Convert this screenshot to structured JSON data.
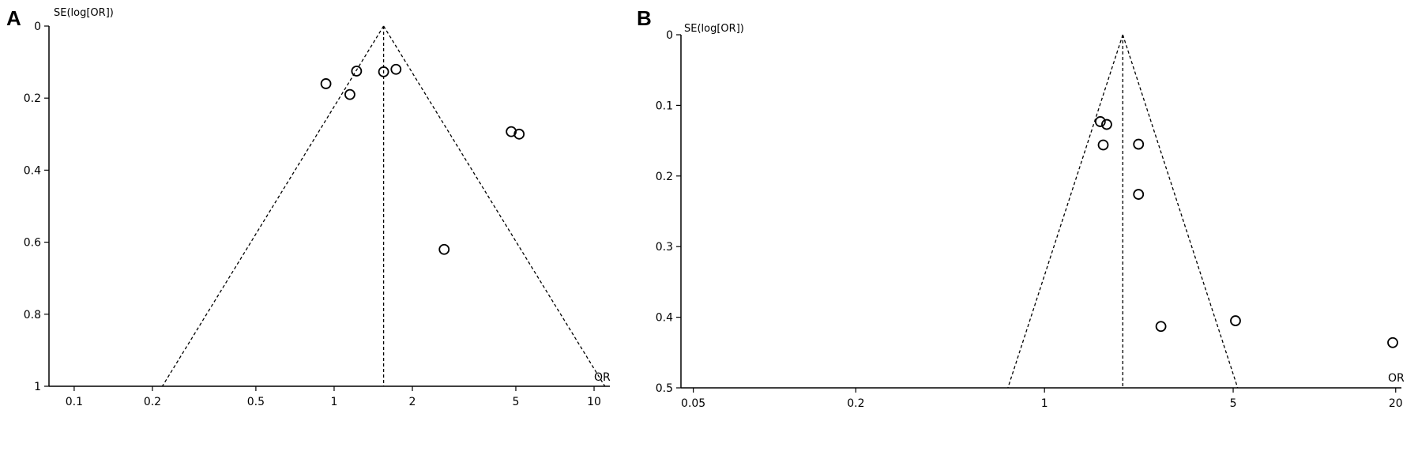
{
  "chart_data": [
    {
      "panel_label": "A",
      "type": "scatter",
      "subtype": "funnel-plot",
      "ylabel": "SE(log[OR])",
      "xlabel": "OR",
      "x_scale": "log",
      "x_ticks": [
        0.1,
        0.2,
        0.5,
        1,
        2,
        5,
        10
      ],
      "x_tick_labels": [
        "0.1",
        "0.2",
        "0.5",
        "1",
        "2",
        "5",
        "10"
      ],
      "xlim": [
        0.08,
        11.5
      ],
      "y_reversed": true,
      "y_ticks": [
        0,
        0.2,
        0.4,
        0.6,
        0.8,
        1
      ],
      "y_tick_labels": [
        "0",
        "0.2",
        "0.4",
        "0.6",
        "0.8",
        "1"
      ],
      "ylim": [
        0,
        1
      ],
      "pooled_or": 1.55,
      "points": [
        {
          "x": 0.93,
          "y": 0.16
        },
        {
          "x": 1.15,
          "y": 0.19
        },
        {
          "x": 1.22,
          "y": 0.125
        },
        {
          "x": 1.55,
          "y": 0.127
        },
        {
          "x": 1.73,
          "y": 0.12
        },
        {
          "x": 2.65,
          "y": 0.62
        },
        {
          "x": 4.8,
          "y": 0.293
        },
        {
          "x": 5.15,
          "y": 0.3
        }
      ],
      "grid": false
    },
    {
      "panel_label": "B",
      "type": "scatter",
      "subtype": "funnel-plot",
      "ylabel": "SE(log[OR])",
      "xlabel": "OR",
      "x_scale": "log",
      "x_ticks": [
        0.05,
        0.2,
        1,
        5,
        20
      ],
      "x_tick_labels": [
        "0.05",
        "0.2",
        "1",
        "5",
        "20"
      ],
      "xlim": [
        0.045,
        21
      ],
      "y_reversed": true,
      "y_ticks": [
        0,
        0.1,
        0.2,
        0.3,
        0.4,
        0.5
      ],
      "y_tick_labels": [
        "0",
        "0.1",
        "0.2",
        "0.3",
        "0.4",
        "0.5"
      ],
      "ylim": [
        0,
        0.5
      ],
      "pooled_or": 1.95,
      "points": [
        {
          "x": 1.61,
          "y": 0.123
        },
        {
          "x": 1.7,
          "y": 0.127
        },
        {
          "x": 1.65,
          "y": 0.156
        },
        {
          "x": 2.23,
          "y": 0.155
        },
        {
          "x": 2.23,
          "y": 0.226
        },
        {
          "x": 2.7,
          "y": 0.413
        },
        {
          "x": 5.1,
          "y": 0.405
        },
        {
          "x": 19.5,
          "y": 0.436
        }
      ],
      "grid": false
    }
  ]
}
